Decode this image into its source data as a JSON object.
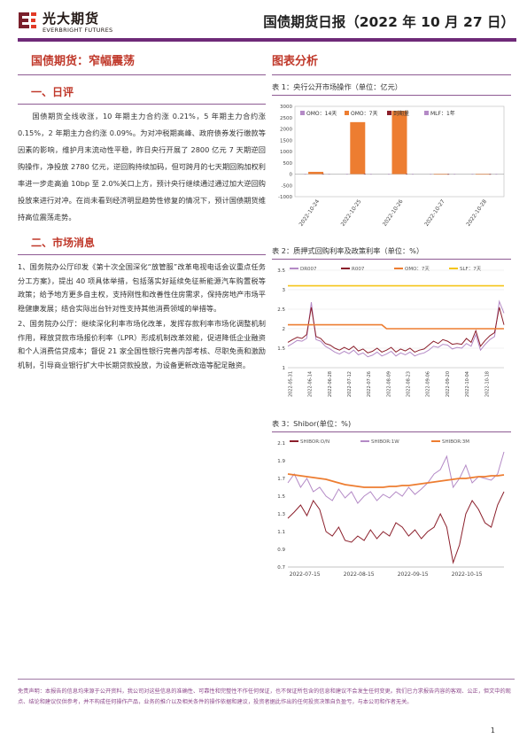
{
  "header": {
    "logo_cn": "光大期货",
    "logo_en": "EVERBRIGHT FUTURES",
    "report_title": "国债期货日报（2022 年 10 月 27 日）"
  },
  "left": {
    "topic_title": "国债期货：窄幅震荡",
    "daily_title": "一、日评",
    "daily_p1": "国债期货全线收涨，10 年期主力合约涨 0.21%，5 年期主力合约涨 0.15%，2 年期主力合约涨 0.09%。为对冲税期高峰、政府债券发行缴款等因素的影响，维护月末流动性平稳，昨日央行开展了 2800 亿元 7 天期逆回购操作，净投放 2780 亿元，逆回购持续加码，但可跨月的七天期回购加权利率进一步走高逾 10bp 至 2.0%关口上方，预计央行继续通过通过加大逆回购投放来进行对冲。在尚未看到经济明显趋势性修复的情况下，预计国债期货维持高位震荡走势。",
    "news_title": "二、市场消息",
    "news_1": "1、国务院办公厅印发《第十次全国深化“放管服”改革电视电话会议重点任务分工方案》，提出 40 项具体举措，包括落实好延续免征新能源汽车购置税等政策；给予地方更多自主权，支持刚性和改善性住房需求，保持房地产市场平稳健康发展；结合实际出台针对性支持其他消费领域的举措等。",
    "news_2": "2、国务院办公厅：继续深化利率市场化改革，发挥存款利率市场化调整机制作用，释放贷款市场报价利率（LPR）形成机制改革效能，促进降低企业融资和个人消费信贷成本；督促 21 家全国性银行完善内部考核、尽职免责和激励机制，引导商业银行扩大中长期贷款投放，为设备更新改造等配足融资。"
  },
  "right": {
    "chart_section_title": "图表分析",
    "fig1_caption": "表 1：央行公开市场操作（单位：亿元）",
    "fig2_caption": "表 2：质押式回购利率及政策利率（单位：%）",
    "fig3_caption": "表 3：Shibor(单位：%)"
  },
  "colors": {
    "brand_purple": "#6e2a78",
    "title_red": "#c0392b",
    "orange": "#ed7d31",
    "light_purple": "#b48ac6",
    "dark_red": "#8b1f2b",
    "gold": "#f5c518",
    "grey": "#999999"
  },
  "footer": {
    "disclaimer": "免责声明：本报告的信息均来源于公开资料，我公司对这些信息的准确性、可靠性和完整性不作任何保证，也不保证所包含的信息和建议不会发生任何变更。我们已力求报告内容的客观、公正，但文中的观点、结论和建议仅供参考，并不构成任何操作产品，业务的推介以及相关条件的操作依据和建议，投资者据此作出的任何投资决策自负盈亏，与本公司和作者无关。",
    "page_number": "1"
  },
  "chart_data": [
    {
      "type": "bar",
      "categories": [
        "2022-10-24",
        "2022-10-25",
        "2022-10-26",
        "2022-10-27",
        "2022-10-28"
      ],
      "series": [
        {
          "name": "OMO：14天",
          "values": [
            0,
            0,
            0,
            0,
            0
          ]
        },
        {
          "name": "OMO：7天",
          "values": [
            100,
            2300,
            2800,
            0,
            0
          ]
        },
        {
          "name": "到期量",
          "values": [
            20,
            20,
            20,
            0,
            0
          ]
        },
        {
          "name": "MLF：1年",
          "values": [
            0,
            0,
            0,
            0,
            0
          ]
        }
      ],
      "yticks": [
        -1000,
        -500,
        0,
        500,
        1000,
        1500,
        2000,
        2500,
        3000
      ],
      "ylim": [
        -1000,
        3000
      ],
      "legend": "top"
    },
    {
      "type": "line",
      "x_ticks": [
        "2022-05-31",
        "2022-06-14",
        "2022-06-28",
        "2022-07-12",
        "2022-07-26",
        "2022-08-09",
        "2022-08-23",
        "2022-09-06",
        "2022-09-20",
        "2022-10-04",
        "2022-10-18"
      ],
      "series": [
        {
          "name": "DR007",
          "values": [
            1.55,
            1.62,
            1.7,
            1.68,
            1.75,
            2.68,
            1.72,
            1.68,
            1.55,
            1.48,
            1.4,
            1.35,
            1.42,
            1.36,
            1.45,
            1.33,
            1.38,
            1.28,
            1.32,
            1.4,
            1.3,
            1.35,
            1.42,
            1.3,
            1.38,
            1.33,
            1.4,
            1.3,
            1.35,
            1.38,
            1.45,
            1.55,
            1.52,
            1.6,
            1.58,
            1.48,
            1.52,
            1.5,
            1.62,
            1.55,
            1.85,
            1.45,
            1.6,
            1.72,
            1.8,
            2.7,
            2.4
          ]
        },
        {
          "name": "R007",
          "values": [
            1.65,
            1.72,
            1.78,
            1.75,
            1.85,
            2.55,
            1.8,
            1.75,
            1.62,
            1.58,
            1.5,
            1.45,
            1.52,
            1.46,
            1.55,
            1.43,
            1.48,
            1.38,
            1.42,
            1.5,
            1.4,
            1.45,
            1.52,
            1.4,
            1.48,
            1.43,
            1.5,
            1.4,
            1.45,
            1.48,
            1.58,
            1.68,
            1.62,
            1.72,
            1.68,
            1.6,
            1.62,
            1.6,
            1.75,
            1.65,
            1.95,
            1.55,
            1.7,
            1.82,
            1.9,
            2.55,
            2.1
          ]
        },
        {
          "name": "OMO：7天",
          "values": [
            2.1,
            2.1,
            2.1,
            2.1,
            2.1,
            2.1,
            2.1,
            2.1,
            2.1,
            2.1,
            2.1,
            2.1,
            2.1,
            2.1,
            2.1,
            2.1,
            2.1,
            2.1,
            2.1,
            2.1,
            2.1,
            2.0,
            2.0,
            2.0,
            2.0,
            2.0,
            2.0,
            2.0,
            2.0,
            2.0,
            2.0,
            2.0,
            2.0,
            2.0,
            2.0,
            2.0,
            2.0,
            2.0,
            2.0,
            2.0,
            2.0,
            2.0,
            2.0,
            2.0,
            2.0,
            2.0,
            2.0
          ]
        },
        {
          "name": "SLF：7天",
          "values": [
            3.1,
            3.1,
            3.1,
            3.1,
            3.1,
            3.1,
            3.1,
            3.1,
            3.1,
            3.1,
            3.1,
            3.1,
            3.1,
            3.1,
            3.1,
            3.1,
            3.1,
            3.1,
            3.1,
            3.1,
            3.1,
            3.1,
            3.1,
            3.1,
            3.1,
            3.1,
            3.1,
            3.1,
            3.1,
            3.1,
            3.1,
            3.1,
            3.1,
            3.1,
            3.1,
            3.1,
            3.1,
            3.1,
            3.1,
            3.1,
            3.1,
            3.1,
            3.1,
            3.1,
            3.1,
            3.1,
            3.1
          ]
        }
      ],
      "yticks": [
        1,
        1.5,
        2,
        2.5,
        3,
        3.5
      ],
      "ylim": [
        1,
        3.5
      ],
      "legend": "top"
    },
    {
      "type": "line",
      "x_ticks": [
        "2022-07-15",
        "2022-08-15",
        "2022-09-15",
        "2022-10-15"
      ],
      "series": [
        {
          "name": "SHIBOR:O/N",
          "values": [
            1.25,
            1.32,
            1.4,
            1.28,
            1.45,
            1.35,
            1.1,
            1.05,
            1.15,
            1.0,
            0.98,
            1.05,
            1.0,
            1.12,
            1.02,
            1.1,
            1.05,
            1.2,
            1.15,
            1.05,
            1.12,
            1.02,
            1.1,
            1.15,
            1.3,
            1.15,
            0.75,
            0.95,
            1.3,
            1.45,
            1.35,
            1.2,
            1.15,
            1.4,
            1.55
          ]
        },
        {
          "name": "SHIBOR:1W",
          "values": [
            1.65,
            1.75,
            1.6,
            1.7,
            1.55,
            1.6,
            1.5,
            1.45,
            1.58,
            1.48,
            1.55,
            1.42,
            1.5,
            1.55,
            1.45,
            1.52,
            1.48,
            1.55,
            1.5,
            1.6,
            1.52,
            1.58,
            1.65,
            1.75,
            1.8,
            1.95,
            1.6,
            1.7,
            1.85,
            1.65,
            1.72,
            1.7,
            1.68,
            1.75,
            2.0
          ]
        },
        {
          "name": "SHIBOR:3M",
          "values": [
            1.75,
            1.74,
            1.73,
            1.72,
            1.71,
            1.7,
            1.69,
            1.67,
            1.65,
            1.63,
            1.62,
            1.61,
            1.6,
            1.6,
            1.6,
            1.6,
            1.61,
            1.61,
            1.62,
            1.62,
            1.63,
            1.64,
            1.65,
            1.66,
            1.67,
            1.68,
            1.69,
            1.7,
            1.7,
            1.71,
            1.72,
            1.72,
            1.73,
            1.73,
            1.74
          ]
        }
      ],
      "yticks": [
        0.7,
        0.9,
        1.1,
        1.3,
        1.5,
        1.7,
        1.9,
        2.1
      ],
      "ylim": [
        0.7,
        2.1
      ],
      "legend": "top"
    }
  ]
}
